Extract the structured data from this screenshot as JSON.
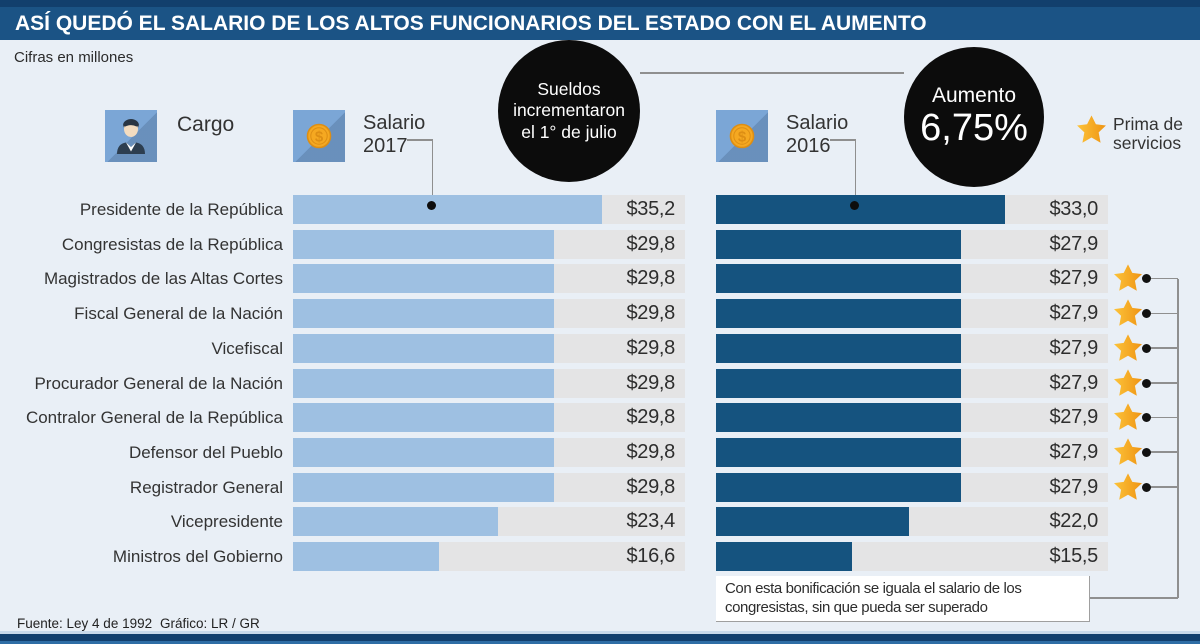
{
  "header": {
    "title": "ASÍ QUEDÓ EL SALARIO DE LOS ALTOS FUNCIONARIOS DEL ESTADO CON EL AUMENTO",
    "subtitle": "Cifras en millones"
  },
  "columns": {
    "cargo": "Cargo",
    "salario_2017_line1": "Salario",
    "salario_2017_line2": "2017",
    "salario_2016_line1": "Salario",
    "salario_2016_line2": "2016"
  },
  "callouts": {
    "july_line1": "Sueldos",
    "july_line2": "incrementaron",
    "july_line3": "el 1° de julio",
    "aumento_label": "Aumento",
    "aumento_value": "6,75%"
  },
  "legend": {
    "prima_line1": "Prima de",
    "prima_line2": "servicios"
  },
  "icons": {
    "cargo_icon": "person-icon",
    "salary_icon": "dollar-coin-icon",
    "prima_icon": "star-icon"
  },
  "colors": {
    "banner_blue": "#1b5385",
    "strip_navy": "#123f6d",
    "bar_2017_light_blue": "#9ec0e2",
    "bar_2016_dark_blue": "#15537f",
    "track_gray": "#e4e4e5",
    "bubble_black": "#0c0c0c",
    "star_orange": "#f5a623",
    "background": "#e9eff6"
  },
  "chart_data": {
    "type": "bar",
    "orientation": "horizontal",
    "title": "ASÍ QUEDÓ EL SALARIO DE LOS ALTOS FUNCIONARIOS DEL ESTADO CON EL AUMENTO",
    "subtitle": "Cifras en millones",
    "unit": "millones de pesos",
    "increase_pct": "6,75%",
    "axis_max": 44.7,
    "grid": false,
    "legend_position": "top",
    "series": [
      "Salario 2017",
      "Salario 2016"
    ],
    "categories": [
      "Presidente de la República",
      "Congresistas de la República",
      "Magistrados de las Altas Cortes",
      "Fiscal General de la Nación",
      "Vicefiscal",
      "Procurador General de la Nación",
      "Contralor General de la República",
      "Defensor del Pueblo",
      "Registrador General",
      "Vicepresidente",
      "Ministros del Gobierno"
    ],
    "rows": [
      {
        "cargo": "Presidente de la República",
        "v2017": 35.2,
        "d2017": "$35,2",
        "v2016": 33.0,
        "d2016": "$33,0",
        "prima": false
      },
      {
        "cargo": "Congresistas de la República",
        "v2017": 29.8,
        "d2017": "$29,8",
        "v2016": 27.9,
        "d2016": "$27,9",
        "prima": false
      },
      {
        "cargo": "Magistrados de las Altas Cortes",
        "v2017": 29.8,
        "d2017": "$29,8",
        "v2016": 27.9,
        "d2016": "$27,9",
        "prima": true
      },
      {
        "cargo": "Fiscal General de la Nación",
        "v2017": 29.8,
        "d2017": "$29,8",
        "v2016": 27.9,
        "d2016": "$27,9",
        "prima": true
      },
      {
        "cargo": "Vicefiscal",
        "v2017": 29.8,
        "d2017": "$29,8",
        "v2016": 27.9,
        "d2016": "$27,9",
        "prima": true
      },
      {
        "cargo": "Procurador General de la Nación",
        "v2017": 29.8,
        "d2017": "$29,8",
        "v2016": 27.9,
        "d2016": "$27,9",
        "prima": true
      },
      {
        "cargo": "Contralor General de la República",
        "v2017": 29.8,
        "d2017": "$29,8",
        "v2016": 27.9,
        "d2016": "$27,9",
        "prima": true
      },
      {
        "cargo": "Defensor del Pueblo",
        "v2017": 29.8,
        "d2017": "$29,8",
        "v2016": 27.9,
        "d2016": "$27,9",
        "prima": true
      },
      {
        "cargo": "Registrador General",
        "v2017": 29.8,
        "d2017": "$29,8",
        "v2016": 27.9,
        "d2016": "$27,9",
        "prima": true
      },
      {
        "cargo": "Vicepresidente",
        "v2017": 23.4,
        "d2017": "$23,4",
        "v2016": 22.0,
        "d2016": "$22,0",
        "prima": false
      },
      {
        "cargo": "Ministros del Gobierno",
        "v2017": 16.6,
        "d2017": "$16,6",
        "v2016": 15.5,
        "d2016": "$15,5",
        "prima": false
      }
    ]
  },
  "note": {
    "line1": "Con esta bonificación se iguala el salario de los",
    "line2": "congresistas, sin que pueda ser superado"
  },
  "footer": {
    "source": "Fuente: Ley 4 de 1992",
    "credit": "Gráfico: LR / GR"
  }
}
